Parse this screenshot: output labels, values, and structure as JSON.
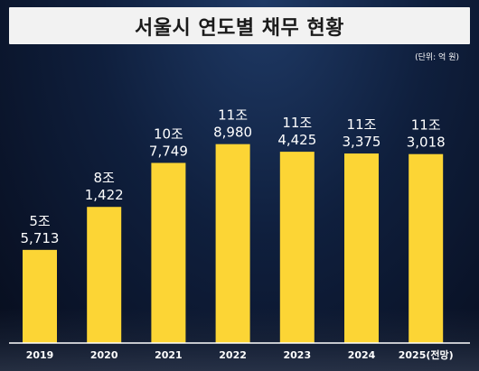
{
  "title": "서울시 연도별 채무 현황",
  "unit_note": "(단위: 억 원)",
  "colors": {
    "bar": "#fcd535",
    "background": "#0f1f3d",
    "title_bg": "#f2f2f2"
  },
  "chart_data": {
    "type": "bar",
    "title": "서울시 연도별 채무 현황",
    "categories": [
      "2019",
      "2020",
      "2021",
      "2022",
      "2023",
      "2024",
      "2025(전망)"
    ],
    "values": [
      55713,
      81422,
      107749,
      118980,
      114425,
      113375,
      113018
    ],
    "label_line1": [
      "5조",
      "8조",
      "10조",
      "11조",
      "11조",
      "11조",
      "11조"
    ],
    "label_line2": [
      "5,713",
      "1,422",
      "7,749",
      "8,980",
      "4,425",
      "3,375",
      "3,018"
    ],
    "ylim": [
      0,
      135000
    ],
    "grid": false,
    "legend": "none"
  }
}
